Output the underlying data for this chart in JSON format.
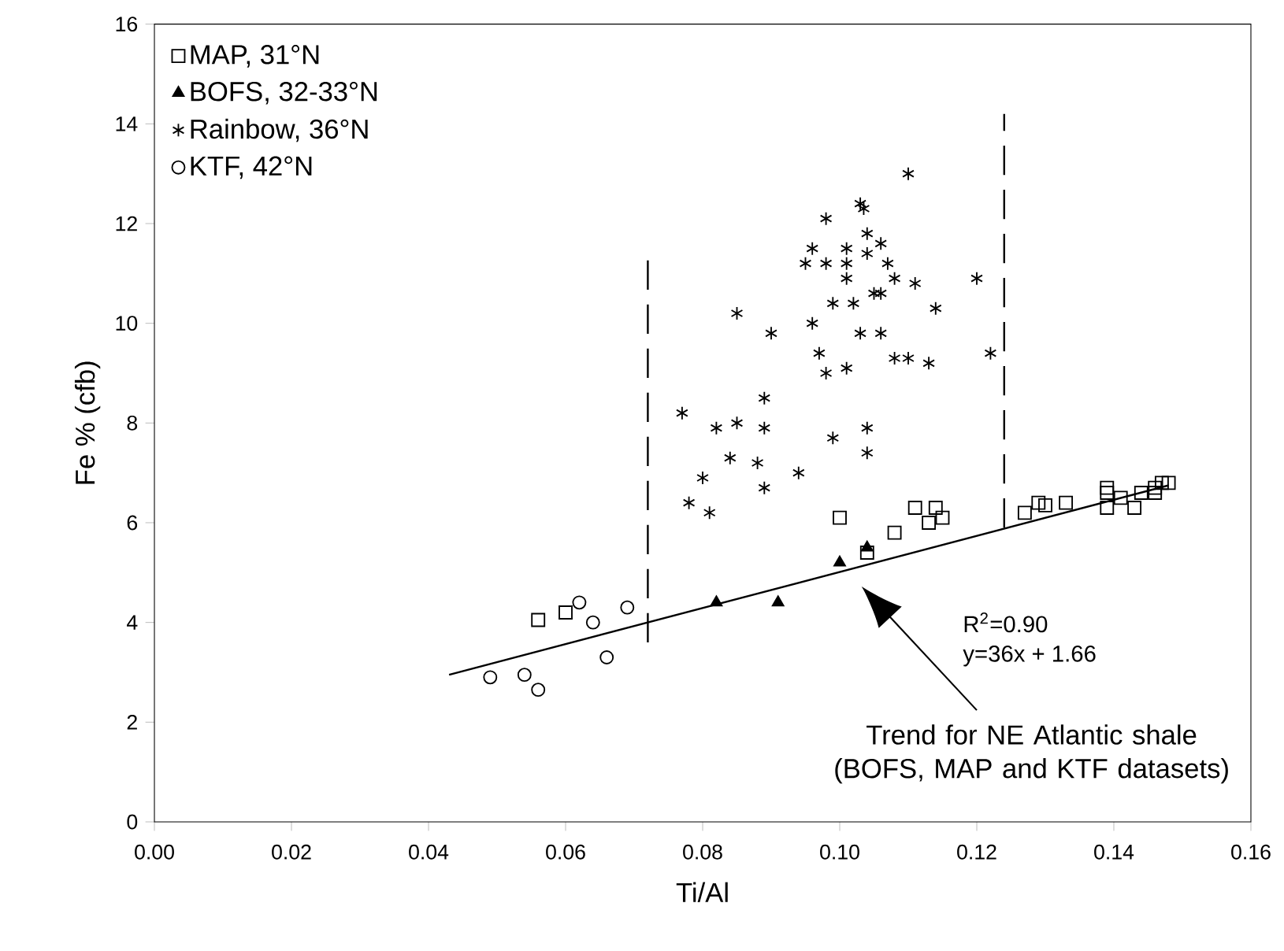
{
  "chart_data": {
    "type": "scatter",
    "xlabel": "Ti/Al",
    "ylabel": "Fe % (cfb)",
    "xlim": [
      0,
      0.16
    ],
    "ylim": [
      0,
      16
    ],
    "xticks": [
      {
        "value": 0,
        "label": "0.00"
      },
      {
        "value": 0.02,
        "label": "0.02"
      },
      {
        "value": 0.04,
        "label": "0.04"
      },
      {
        "value": 0.06,
        "label": "0.06"
      },
      {
        "value": 0.08,
        "label": "0.08"
      },
      {
        "value": 0.1,
        "label": "0.10"
      },
      {
        "value": 0.12,
        "label": "0.12"
      },
      {
        "value": 0.14,
        "label": "0.14"
      },
      {
        "value": 0.16,
        "label": "0.16"
      }
    ],
    "yticks": [
      0,
      2,
      4,
      6,
      8,
      10,
      12,
      14,
      16
    ],
    "grid": false,
    "legend": "top left",
    "series": [
      {
        "name": "MAP, 31°N",
        "marker": "square",
        "color": "#000000",
        "x": [
          0.056,
          0.06,
          0.1,
          0.104,
          0.108,
          0.111,
          0.113,
          0.114,
          0.115,
          0.127,
          0.129,
          0.13,
          0.133,
          0.139,
          0.139,
          0.139,
          0.141,
          0.143,
          0.144,
          0.146,
          0.146,
          0.147,
          0.148
        ],
        "values": [
          4.05,
          4.2,
          6.1,
          5.4,
          5.8,
          6.3,
          6.0,
          6.3,
          6.1,
          6.2,
          6.4,
          6.35,
          6.4,
          6.3,
          6.6,
          6.7,
          6.5,
          6.3,
          6.6,
          6.6,
          6.7,
          6.8,
          6.8
        ]
      },
      {
        "name": "BOFS, 32-33°N",
        "marker": "triangle",
        "color": "#000000",
        "x": [
          0.082,
          0.091,
          0.1,
          0.104
        ],
        "values": [
          4.4,
          4.4,
          5.2,
          5.5
        ]
      },
      {
        "name": "Rainbow, 36°N",
        "marker": "cross",
        "color": "#000000",
        "x": [
          0.11,
          0.103,
          0.1035,
          0.098,
          0.104,
          0.106,
          0.101,
          0.096,
          0.095,
          0.098,
          0.101,
          0.104,
          0.107,
          0.101,
          0.099,
          0.102,
          0.105,
          0.106,
          0.108,
          0.111,
          0.114,
          0.12,
          0.085,
          0.09,
          0.096,
          0.097,
          0.103,
          0.106,
          0.108,
          0.11,
          0.113,
          0.098,
          0.101,
          0.122,
          0.077,
          0.082,
          0.085,
          0.089,
          0.089,
          0.084,
          0.088,
          0.08,
          0.078,
          0.081,
          0.089,
          0.094,
          0.099,
          0.104,
          0.104
        ],
        "values": [
          13.0,
          12.4,
          12.3,
          12.1,
          11.8,
          11.6,
          11.5,
          11.5,
          11.2,
          11.2,
          11.2,
          11.4,
          11.2,
          10.9,
          10.4,
          10.4,
          10.6,
          10.6,
          10.9,
          10.8,
          10.3,
          10.9,
          10.2,
          9.8,
          10.0,
          9.4,
          9.8,
          9.8,
          9.3,
          9.3,
          9.2,
          9.0,
          9.1,
          9.4,
          8.2,
          7.9,
          8.0,
          8.5,
          7.9,
          7.3,
          7.2,
          6.9,
          6.4,
          6.2,
          6.7,
          7.0,
          7.7,
          7.9,
          7.4
        ]
      },
      {
        "name": "KTF, 42°N",
        "marker": "circle",
        "color": "#000000",
        "x": [
          0.049,
          0.054,
          0.056,
          0.062,
          0.064,
          0.066,
          0.069
        ],
        "values": [
          2.9,
          2.95,
          2.65,
          4.4,
          4.0,
          3.3,
          4.3
        ]
      },
      {
        "type": "line",
        "marker": "none",
        "line_style": "solid",
        "color": "#000000",
        "x": [
          0.043,
          0.148
        ],
        "values": [
          2.95,
          6.75
        ]
      },
      {
        "type": "line",
        "marker": "none",
        "line_style": "dashed",
        "color": "#000000",
        "x": [
          0.072,
          0.072
        ],
        "values": [
          3.6,
          11.3
        ]
      },
      {
        "type": "line",
        "marker": "none",
        "line_style": "dashed",
        "color": "#000000",
        "x": [
          0.124,
          0.124
        ],
        "values": [
          5.9,
          14.2
        ]
      }
    ],
    "annotations": [
      "R$^{2}$=0.90",
      "y=36x + 1.66",
      "Trend for NE Atlantic shale (BOFS, MAP and KTF datasets)"
    ]
  }
}
